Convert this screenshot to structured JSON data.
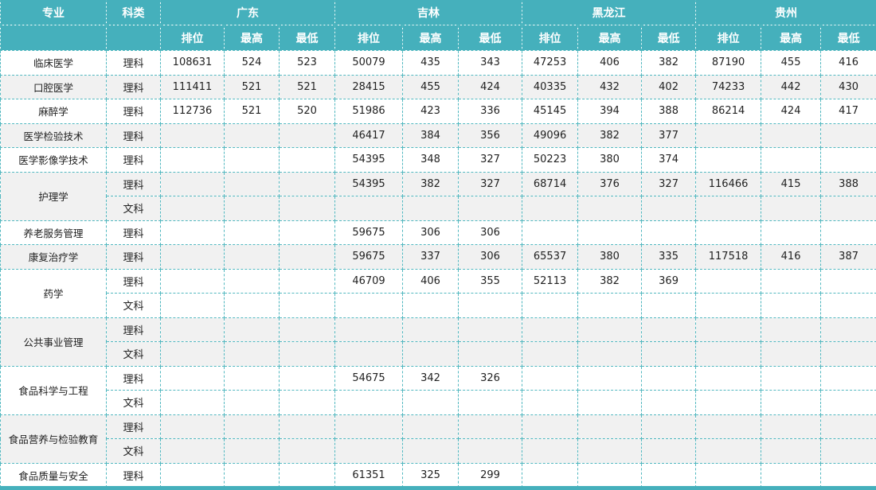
{
  "header": {
    "major": "专业",
    "category": "科类",
    "provinces": [
      "广东",
      "吉林",
      "黑龙江",
      "贵州"
    ],
    "sub": [
      "排位",
      "最高",
      "最低"
    ]
  },
  "colors": {
    "header_bg": "#45b0bc",
    "border": "#52b8c0",
    "alt_row": "#f1f1f1"
  },
  "majors": [
    {
      "name": "临床医学",
      "rows": [
        {
          "type": "理科",
          "values": [
            [
              "108631",
              "524",
              "523"
            ],
            [
              "50079",
              "435",
              "343"
            ],
            [
              "47253",
              "406",
              "382"
            ],
            [
              "87190",
              "455",
              "416"
            ]
          ]
        }
      ]
    },
    {
      "name": "口腔医学",
      "rows": [
        {
          "type": "理科",
          "values": [
            [
              "111411",
              "521",
              "521"
            ],
            [
              "28415",
              "455",
              "424"
            ],
            [
              "40335",
              "432",
              "402"
            ],
            [
              "74233",
              "442",
              "430"
            ]
          ]
        }
      ]
    },
    {
      "name": "麻醉学",
      "rows": [
        {
          "type": "理科",
          "values": [
            [
              "112736",
              "521",
              "520"
            ],
            [
              "51986",
              "423",
              "336"
            ],
            [
              "45145",
              "394",
              "388"
            ],
            [
              "86214",
              "424",
              "417"
            ]
          ]
        }
      ]
    },
    {
      "name": "医学检验技术",
      "rows": [
        {
          "type": "理科",
          "values": [
            [
              "",
              "",
              ""
            ],
            [
              "46417",
              "384",
              "356"
            ],
            [
              "49096",
              "382",
              "377"
            ],
            [
              "",
              "",
              ""
            ]
          ]
        }
      ]
    },
    {
      "name": "医学影像学技术",
      "rows": [
        {
          "type": "理科",
          "values": [
            [
              "",
              "",
              ""
            ],
            [
              "54395",
              "348",
              "327"
            ],
            [
              "50223",
              "380",
              "374"
            ],
            [
              "",
              "",
              ""
            ]
          ]
        }
      ]
    },
    {
      "name": "护理学",
      "rows": [
        {
          "type": "理科",
          "values": [
            [
              "",
              "",
              ""
            ],
            [
              "54395",
              "382",
              "327"
            ],
            [
              "68714",
              "376",
              "327"
            ],
            [
              "116466",
              "415",
              "388"
            ]
          ]
        },
        {
          "type": "文科",
          "values": [
            [
              "",
              "",
              ""
            ],
            [
              "",
              "",
              ""
            ],
            [
              "",
              "",
              ""
            ],
            [
              "",
              "",
              ""
            ]
          ]
        }
      ]
    },
    {
      "name": "养老服务管理",
      "rows": [
        {
          "type": "理科",
          "values": [
            [
              "",
              "",
              ""
            ],
            [
              "59675",
              "306",
              "306"
            ],
            [
              "",
              "",
              ""
            ],
            [
              "",
              "",
              ""
            ]
          ]
        }
      ]
    },
    {
      "name": "康复治疗学",
      "rows": [
        {
          "type": "理科",
          "values": [
            [
              "",
              "",
              ""
            ],
            [
              "59675",
              "337",
              "306"
            ],
            [
              "65537",
              "380",
              "335"
            ],
            [
              "117518",
              "416",
              "387"
            ]
          ]
        }
      ]
    },
    {
      "name": "药学",
      "rows": [
        {
          "type": "理科",
          "values": [
            [
              "",
              "",
              ""
            ],
            [
              "46709",
              "406",
              "355"
            ],
            [
              "52113",
              "382",
              "369"
            ],
            [
              "",
              "",
              ""
            ]
          ]
        },
        {
          "type": "文科",
          "values": [
            [
              "",
              "",
              ""
            ],
            [
              "",
              "",
              ""
            ],
            [
              "",
              "",
              ""
            ],
            [
              "",
              "",
              ""
            ]
          ]
        }
      ]
    },
    {
      "name": "公共事业管理",
      "rows": [
        {
          "type": "理科",
          "values": [
            [
              "",
              "",
              ""
            ],
            [
              "",
              "",
              ""
            ],
            [
              "",
              "",
              ""
            ],
            [
              "",
              "",
              ""
            ]
          ]
        },
        {
          "type": "文科",
          "values": [
            [
              "",
              "",
              ""
            ],
            [
              "",
              "",
              ""
            ],
            [
              "",
              "",
              ""
            ],
            [
              "",
              "",
              ""
            ]
          ]
        }
      ]
    },
    {
      "name": "食品科学与工程",
      "rows": [
        {
          "type": "理科",
          "values": [
            [
              "",
              "",
              ""
            ],
            [
              "54675",
              "342",
              "326"
            ],
            [
              "",
              "",
              ""
            ],
            [
              "",
              "",
              ""
            ]
          ]
        },
        {
          "type": "文科",
          "values": [
            [
              "",
              "",
              ""
            ],
            [
              "",
              "",
              ""
            ],
            [
              "",
              "",
              ""
            ],
            [
              "",
              "",
              ""
            ]
          ]
        }
      ]
    },
    {
      "name": "食品营养与检验教育",
      "rows": [
        {
          "type": "理科",
          "values": [
            [
              "",
              "",
              ""
            ],
            [
              "",
              "",
              ""
            ],
            [
              "",
              "",
              ""
            ],
            [
              "",
              "",
              ""
            ]
          ]
        },
        {
          "type": "文科",
          "values": [
            [
              "",
              "",
              ""
            ],
            [
              "",
              "",
              ""
            ],
            [
              "",
              "",
              ""
            ],
            [
              "",
              "",
              ""
            ]
          ]
        }
      ]
    },
    {
      "name": "食品质量与安全",
      "rows": [
        {
          "type": "理科",
          "values": [
            [
              "",
              "",
              ""
            ],
            [
              "61351",
              "325",
              "299"
            ],
            [
              "",
              "",
              ""
            ],
            [
              "",
              "",
              ""
            ]
          ]
        }
      ]
    }
  ]
}
